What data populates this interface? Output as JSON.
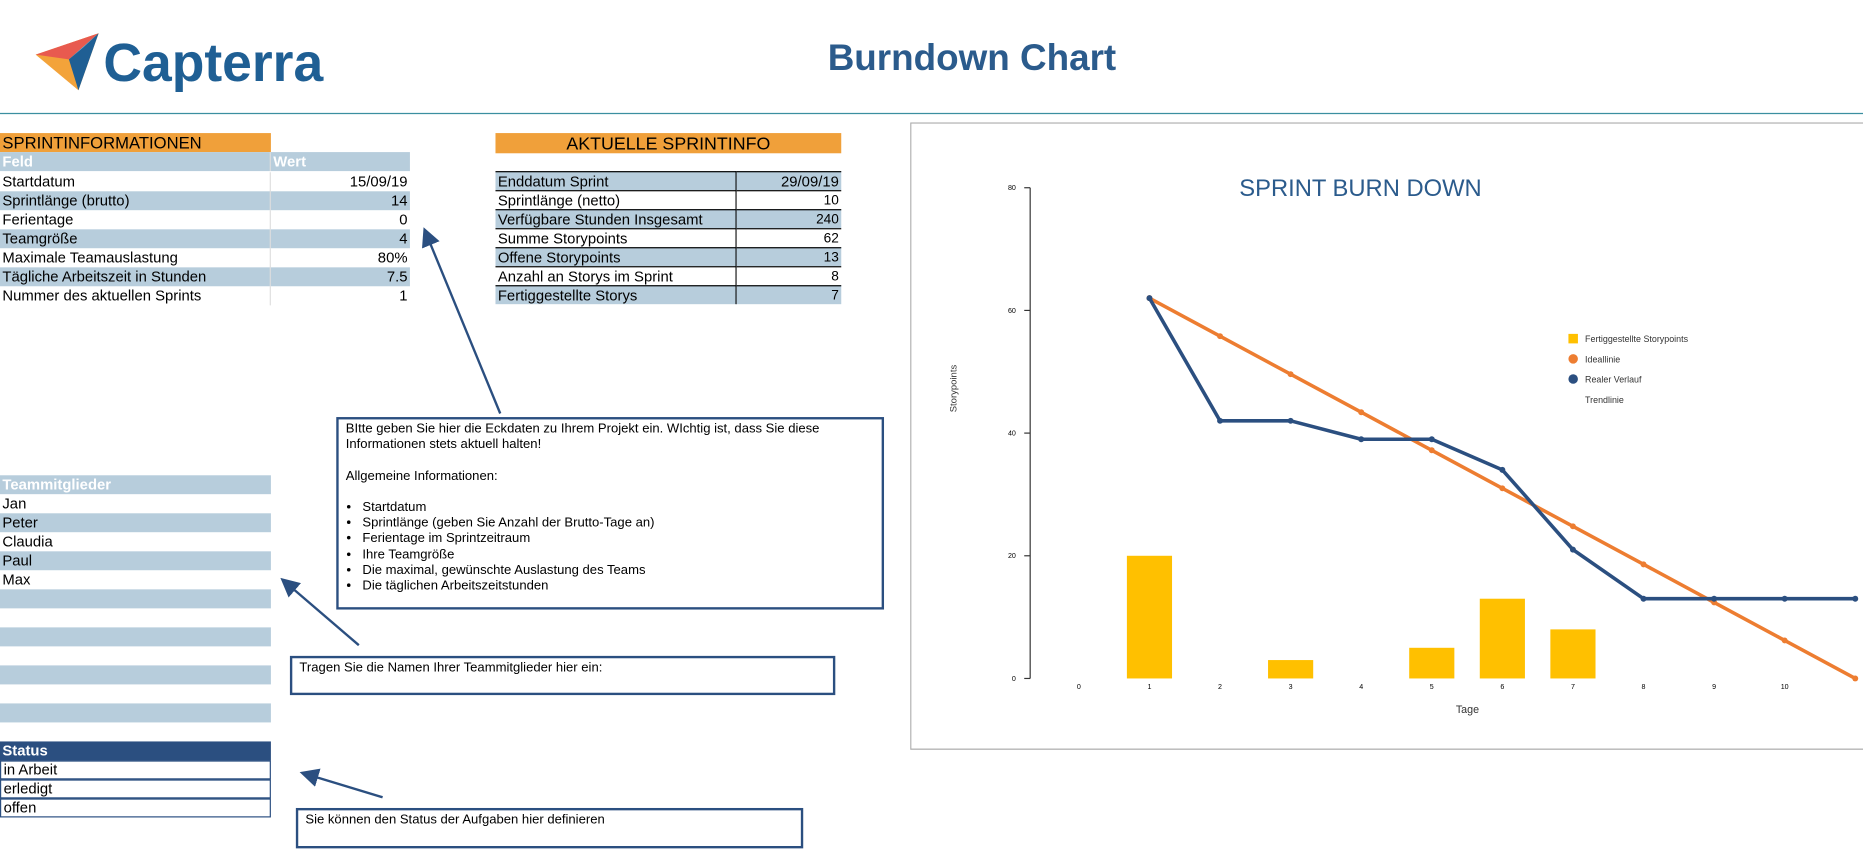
{
  "header": {
    "logo": "Capterra",
    "title": "Burndown Chart"
  },
  "sprint_info": {
    "title": "SPRINTINFORMATIONEN",
    "columns": [
      "Feld",
      "Wert"
    ],
    "rows": [
      [
        "Startdatum",
        "15/09/19"
      ],
      [
        "Sprintlänge (brutto)",
        14
      ],
      [
        "Ferientage",
        0
      ],
      [
        "Teamgröße",
        4
      ],
      [
        "Maximale Teamauslastung",
        "80%"
      ],
      [
        "Tägliche Arbeitszeit in Stunden",
        7.5
      ],
      [
        "Nummer des aktuellen Sprints",
        1
      ]
    ]
  },
  "current_info": {
    "title": "AKTUELLE SPRINTINFO",
    "rows": [
      [
        "Enddatum Sprint",
        "29/09/19"
      ],
      [
        "Sprintlänge (netto)",
        10
      ],
      [
        "Verfügbare Stunden Insgesamt",
        240
      ],
      [
        "Summe Storypoints",
        62
      ],
      [
        "Offene Storypoints",
        13
      ],
      [
        "Anzahl an Storys im Sprint",
        8
      ],
      [
        "Fertiggestellte Storys",
        7
      ]
    ]
  },
  "team": {
    "title": "Teammitglieder",
    "members": [
      "Jan",
      "Peter",
      "Claudia",
      "Paul",
      "Max"
    ]
  },
  "status": {
    "title": "Status",
    "options": [
      "in Arbeit",
      "erledigt",
      "offen"
    ]
  },
  "notes": {
    "project": {
      "intro": "BItte geben Sie hier die Eckdaten zu Ihrem Projekt ein. WIchtig ist, dass Sie diese Informationen stets aktuell halten!",
      "general": "Allgemeine Informationen:",
      "items": [
        "Startdatum",
        "Sprintlänge (geben Sie Anzahl der Brutto-Tage an)",
        "Ferientage im Sprintzeitraum",
        "Ihre Teamgröße",
        "Die maximal, gewünschte Auslastung des Teams",
        "Die täglichen Arbeitszeitstunden"
      ]
    },
    "team": "Tragen Sie die Namen Ihrer Teammitglieder hier ein:",
    "status": "Sie können den Status der Aufgaben hier definieren"
  },
  "chart_data": {
    "type": "combo",
    "title": "SPRINT BURN DOWN",
    "x_label": "Tage",
    "y_label": "Storypoints",
    "categories": [
      0,
      1,
      2,
      3,
      4,
      5,
      6,
      7,
      8,
      9,
      10,
      null
    ],
    "series": [
      {
        "name": "Fertiggestellte Storypoints",
        "type": "bar",
        "color": "#ffc000",
        "values": [
          null,
          20,
          null,
          3,
          null,
          5,
          13,
          8,
          null,
          null,
          null,
          null
        ]
      },
      {
        "name": "Ideallinie",
        "type": "line",
        "color": "#ed7d31",
        "values": [
          null,
          62,
          55.8,
          49.6,
          43.4,
          37.2,
          31,
          24.8,
          18.6,
          12.4,
          6.2,
          0
        ]
      },
      {
        "name": "Realer Verlauf",
        "type": "line",
        "color": "#2b4f80",
        "values": [
          null,
          62,
          42,
          42,
          39,
          39,
          34,
          21,
          13,
          13,
          13,
          13
        ]
      },
      {
        "name": "Trendlinie",
        "type": "line",
        "color": null,
        "values": [
          null,
          null,
          null,
          null,
          null,
          null,
          null,
          null,
          null,
          null,
          null,
          null
        ]
      }
    ],
    "ylim": [
      0,
      80
    ],
    "yticks": [
      0,
      20,
      40,
      60,
      80
    ],
    "grid": false,
    "legend": "right"
  }
}
